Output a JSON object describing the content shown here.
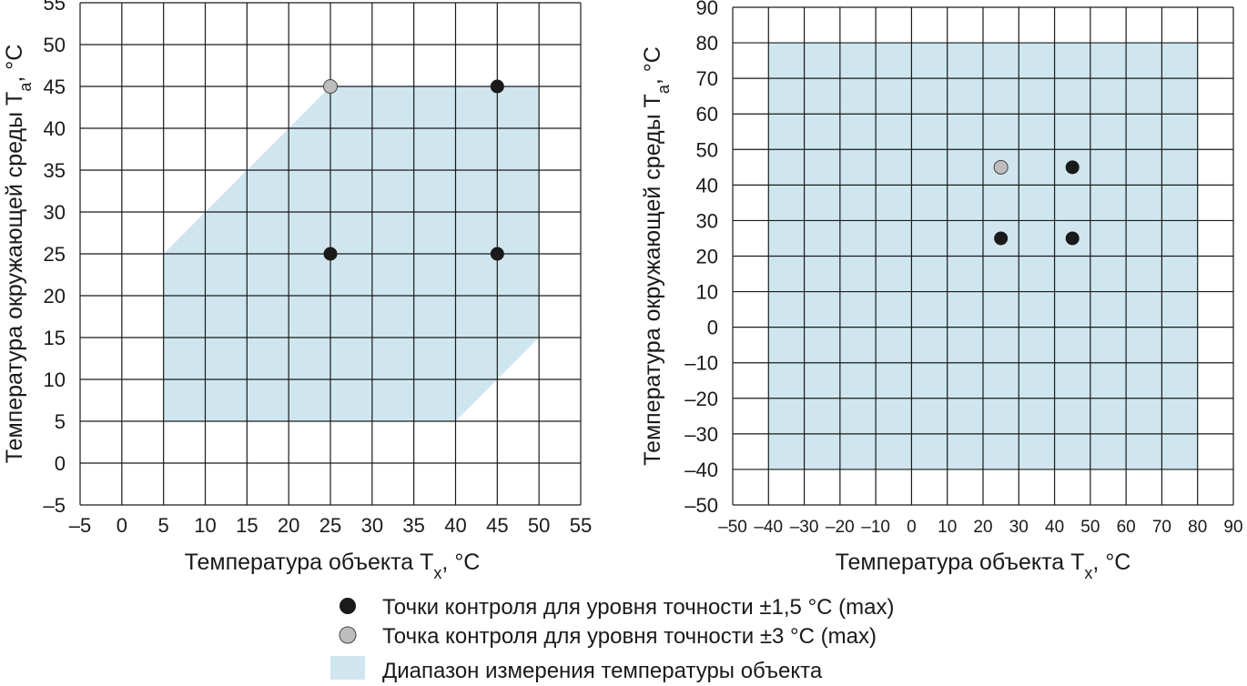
{
  "colors": {
    "range_fill": "#cfe6ef",
    "point_accuracy_1_5": "#1a1a1a",
    "point_accuracy_3": "#bdbdbd",
    "grid": "#1a1a1a"
  },
  "chart_data": [
    {
      "type": "scatter",
      "xlabel": "Температура объекта T",
      "xlabel_sub": "x",
      "xlabel_unit": ", °C",
      "ylabel": "Температура окружающей среды T",
      "ylabel_sub": "a",
      "ylabel_unit": ", °C",
      "xlim": [
        -5,
        55
      ],
      "ylim": [
        -5,
        55
      ],
      "grid": true,
      "x_ticks": [
        -5,
        0,
        5,
        10,
        15,
        20,
        25,
        30,
        35,
        40,
        45,
        50,
        55
      ],
      "y_ticks": [
        -5,
        0,
        5,
        10,
        15,
        20,
        25,
        30,
        35,
        40,
        45,
        50,
        55
      ],
      "x_tick_labels": [
        "–5",
        "0",
        "5",
        "10",
        "15",
        "20",
        "25",
        "30",
        "35",
        "40",
        "45",
        "50",
        "55"
      ],
      "y_tick_labels": [
        "–5",
        "0",
        "5",
        "10",
        "15",
        "20",
        "25",
        "30",
        "35",
        "40",
        "45",
        "50",
        "55"
      ],
      "range_polygon": [
        [
          5,
          5
        ],
        [
          40,
          5
        ],
        [
          50,
          15
        ],
        [
          50,
          45
        ],
        [
          25,
          45
        ],
        [
          5,
          25
        ]
      ],
      "points_accuracy_1_5": [
        [
          25,
          25
        ],
        [
          45,
          25
        ],
        [
          45,
          45
        ]
      ],
      "points_accuracy_3": [
        [
          25,
          45
        ]
      ]
    },
    {
      "type": "scatter",
      "xlabel": "Температура объекта T",
      "xlabel_sub": "x",
      "xlabel_unit": ", °C",
      "ylabel": "Температура окружающей среды T",
      "ylabel_sub": "a",
      "ylabel_unit": ", °C",
      "xlim": [
        -50,
        90
      ],
      "ylim": [
        -50,
        90
      ],
      "grid": true,
      "x_ticks": [
        -50,
        -40,
        -30,
        -20,
        -10,
        0,
        10,
        20,
        30,
        40,
        50,
        60,
        70,
        80,
        90
      ],
      "y_ticks": [
        -50,
        -40,
        -30,
        -20,
        -10,
        0,
        10,
        20,
        30,
        40,
        50,
        60,
        70,
        80,
        90
      ],
      "x_tick_labels": [
        "–50",
        "–40",
        "–30",
        "–20",
        "–10",
        "0",
        "10",
        "20",
        "30",
        "40",
        "50",
        "60",
        "70",
        "80",
        "90"
      ],
      "y_tick_labels": [
        "–50",
        "–40",
        "–30",
        "–20",
        "–10",
        "0",
        "10",
        "20",
        "30",
        "40",
        "50",
        "60",
        "70",
        "80",
        "90"
      ],
      "range_polygon": [
        [
          -40,
          -40
        ],
        [
          80,
          -40
        ],
        [
          80,
          80
        ],
        [
          -40,
          80
        ]
      ],
      "points_accuracy_1_5": [
        [
          25,
          25
        ],
        [
          45,
          25
        ],
        [
          45,
          45
        ]
      ],
      "points_accuracy_3": [
        [
          25,
          45
        ]
      ]
    }
  ],
  "legend": {
    "placement": "bottom-center",
    "items": [
      {
        "marker": "black-dot",
        "label": "Точки контроля для уровня точности ±1,5 °C (max)"
      },
      {
        "marker": "gray-dot",
        "label": "Точка контроля для уровня точности ±3 °C (max)"
      },
      {
        "marker": "blue-square",
        "label": "Диапазон измерения температуры объекта"
      }
    ]
  }
}
